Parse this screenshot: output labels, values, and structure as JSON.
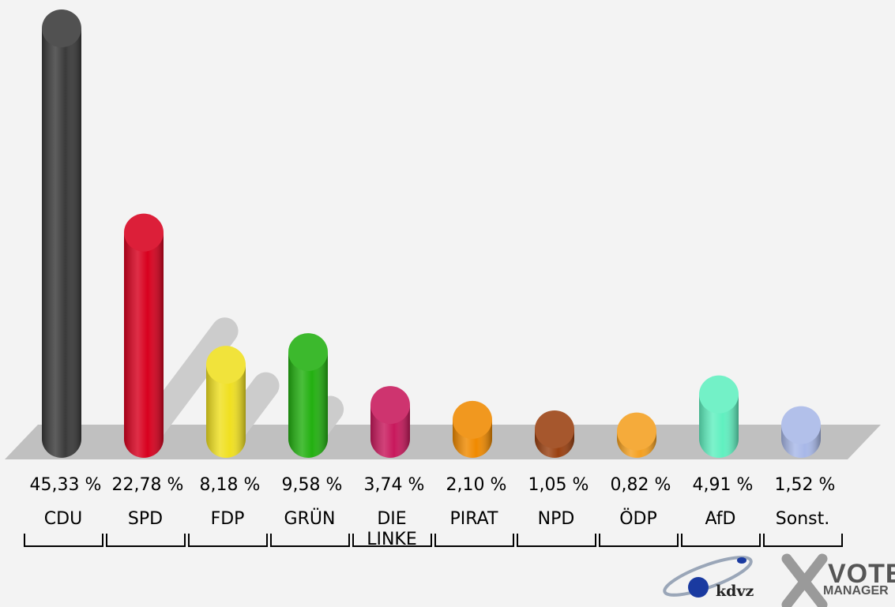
{
  "chart_data": {
    "type": "bar",
    "title": "",
    "xlabel": "",
    "ylabel": "",
    "categories": [
      "CDU",
      "SPD",
      "FDP",
      "GRÜN",
      "DIE\nLINKE",
      "PIRAT",
      "NPD",
      "ÖDP",
      "AfD",
      "Sonst."
    ],
    "values": [
      45.33,
      22.78,
      8.18,
      9.58,
      3.74,
      2.1,
      1.05,
      0.82,
      4.91,
      1.52
    ],
    "value_labels": [
      "45,33 %",
      "22,78 %",
      "8,18 %",
      "9,58 %",
      "3,74 %",
      "2,10 %",
      "1,05 %",
      "0,82 %",
      "4,91 %",
      "1,52 %"
    ],
    "shadow_values": [
      null,
      8.83,
      4.35,
      2.42,
      0.38,
      null,
      null,
      null,
      -0.06,
      null
    ],
    "colors": [
      "#3a3a3a",
      "#d8001e",
      "#f0e020",
      "#22b010",
      "#c8185c",
      "#f08a00",
      "#9a4010",
      "#f4a020",
      "#60f0c0",
      "#a8b8e8"
    ],
    "shadow_color": "#cccccc",
    "floor_color": "#c0c0c0",
    "grid": false,
    "legend": "none"
  },
  "logos": {
    "kdvz": "kdvz",
    "vote": "VOTE",
    "manager": "MANAGER"
  }
}
